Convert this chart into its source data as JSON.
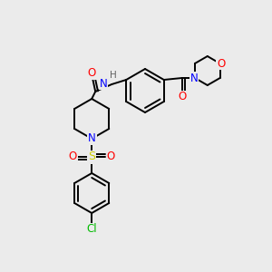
{
  "bg_color": "#ebebeb",
  "atom_colors": {
    "C": "#000000",
    "N": "#0000ff",
    "O": "#ff0000",
    "S": "#cccc00",
    "Cl": "#00bb00",
    "H": "#606060"
  },
  "bond_color": "#000000",
  "figure_size": [
    3.0,
    3.0
  ],
  "dpi": 100
}
